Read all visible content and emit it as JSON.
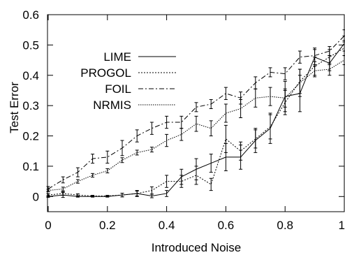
{
  "chart_data": {
    "type": "line",
    "title": "",
    "xlabel": "Introduced Noise",
    "ylabel": "Test Error",
    "xlim": [
      0,
      1
    ],
    "ylim": [
      -0.05,
      0.6
    ],
    "grid": false,
    "legend_position": "left",
    "x_ticks": [
      "0",
      "0.2",
      "0.4",
      "0.6",
      "0.8",
      "1"
    ],
    "y_ticks": [
      "0",
      "0.1",
      "0.2",
      "0.3",
      "0.4",
      "0.5",
      "0.6"
    ],
    "x_tick_values": [
      0,
      0.2,
      0.4,
      0.6,
      0.8,
      1
    ],
    "y_tick_values": [
      0,
      0.1,
      0.2,
      0.3,
      0.4,
      0.5,
      0.6
    ],
    "x": [
      0,
      0.05,
      0.1,
      0.15,
      0.2,
      0.25,
      0.3,
      0.35,
      0.4,
      0.45,
      0.5,
      0.55,
      0.6,
      0.65,
      0.7,
      0.75,
      0.8,
      0.85,
      0.9,
      0.95,
      1
    ],
    "series": [
      {
        "name": "LIME",
        "style": "solid",
        "values": [
          0,
          0.005,
          0,
          0,
          0,
          0.005,
          0.01,
          0.002,
          0.01,
          0.065,
          0.09,
          0.11,
          0.13,
          0.13,
          0.185,
          0.225,
          0.33,
          0.34,
          0.46,
          0.44,
          0.505
        ],
        "errors": [
          0.003,
          0.008,
          0.002,
          0.002,
          0.002,
          0.006,
          0.008,
          0.006,
          0.01,
          0.025,
          0.035,
          0.03,
          0.045,
          0.04,
          0.04,
          0.05,
          0.05,
          0.06,
          0.03,
          0.025,
          0.025
        ]
      },
      {
        "name": "PROGOL",
        "style": "dotted",
        "values": [
          0.005,
          0.01,
          0.005,
          0.002,
          0.002,
          0.005,
          0.01,
          0.02,
          0.05,
          0.05,
          0.07,
          0.04,
          0.19,
          0.15,
          0.19,
          0.23,
          0.31,
          0.38,
          0.43,
          0.46,
          0.49
        ],
        "errors": [
          0.005,
          0.006,
          0.004,
          0.002,
          0.002,
          0.006,
          0.01,
          0.012,
          0.02,
          0.02,
          0.03,
          0.02,
          0.045,
          0.03,
          0.03,
          0.04,
          0.04,
          0.04,
          0.03,
          0.025,
          0.025
        ]
      },
      {
        "name": "FOIL",
        "style": "dashdot",
        "values": [
          0.025,
          0.055,
          0.08,
          0.125,
          0.13,
          0.16,
          0.2,
          0.225,
          0.245,
          0.245,
          0.295,
          0.305,
          0.34,
          0.325,
          0.375,
          0.41,
          0.405,
          0.46,
          0.465,
          0.48,
          0.53
        ],
        "errors": [
          0.008,
          0.01,
          0.015,
          0.015,
          0.02,
          0.025,
          0.02,
          0.02,
          0.02,
          0.02,
          0.015,
          0.015,
          0.02,
          0.02,
          0.02,
          0.015,
          0.02,
          0.02,
          0.02,
          0.015,
          0.02
        ]
      },
      {
        "name": "NRMIS",
        "style": "dotted-dense",
        "values": [
          0.02,
          0.025,
          0.05,
          0.07,
          0.085,
          0.12,
          0.145,
          0.155,
          0.185,
          0.205,
          0.24,
          0.225,
          0.275,
          0.29,
          0.325,
          0.33,
          0.325,
          0.375,
          0.415,
          0.42,
          0.45
        ],
        "errors": [
          0.004,
          0.006,
          0.006,
          0.006,
          0.007,
          0.008,
          0.008,
          0.008,
          0.02,
          0.02,
          0.025,
          0.025,
          0.03,
          0.03,
          0.03,
          0.03,
          0.03,
          0.045,
          0.02,
          0.02,
          0.015
        ]
      }
    ],
    "colors": {
      "line": "#000000",
      "background": "#ffffff"
    }
  }
}
